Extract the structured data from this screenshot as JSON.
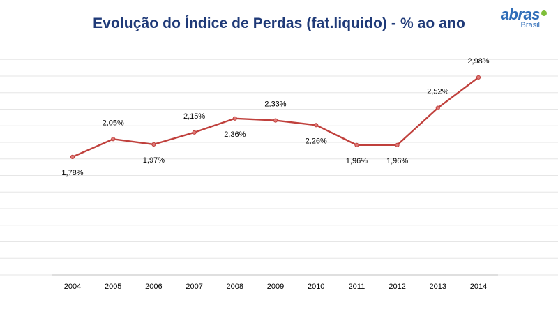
{
  "header": {
    "title": "Evolução do Índice de Perdas (fat.liquido) - % ao ano",
    "logo_word": "abras",
    "logo_sub": "Brasil"
  },
  "chart_data": {
    "type": "line",
    "title": "Evolução do Índice de Perdas (fat.liquido) - % ao ano",
    "xlabel": "",
    "ylabel": "",
    "categories": [
      "2004",
      "2005",
      "2006",
      "2007",
      "2008",
      "2009",
      "2010",
      "2011",
      "2012",
      "2013",
      "2014"
    ],
    "series": [
      {
        "values": [
          1.78,
          2.05,
          1.97,
          2.15,
          2.36,
          2.33,
          2.26,
          1.96,
          1.96,
          2.52,
          2.98
        ],
        "labels": [
          "1,78%",
          "2,05%",
          "1,97%",
          "2,15%",
          "2,36%",
          "2,33%",
          "2,26%",
          "1,96%",
          "1,96%",
          "2,52%",
          "2,98%"
        ],
        "label_positions": [
          "below",
          "above",
          "below",
          "above",
          "below",
          "above",
          "below",
          "below",
          "below",
          "above",
          "above"
        ],
        "color": "#c0403c"
      }
    ],
    "ylim": [
      0,
      3.6
    ],
    "grid": true,
    "legend": "none"
  }
}
